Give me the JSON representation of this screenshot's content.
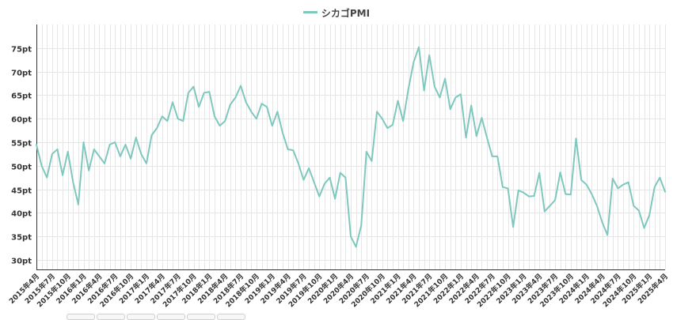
{
  "colors": {
    "line": "#7ec8bf",
    "grid": "#e6e6e6",
    "axis": "#333333",
    "text": "#333333"
  },
  "chart_data": {
    "type": "line",
    "title": "",
    "xlabel": "",
    "ylabel": "",
    "y_unit": "pt",
    "ylim": [
      28,
      80
    ],
    "y_ticks": [
      30,
      35,
      40,
      45,
      50,
      55,
      60,
      65,
      70,
      75
    ],
    "grid": true,
    "legend_position": "top-center",
    "x_tick_labels": [
      "2015年4月",
      "2015年7月",
      "2015年10月",
      "2016年1月",
      "2016年4月",
      "2016年7月",
      "2016年10月",
      "2017年1月",
      "2017年4月",
      "2017年7月",
      "2017年10月",
      "2018年1月",
      "2018年4月",
      "2018年7月",
      "2018年10月",
      "2019年1月",
      "2019年4月",
      "2019年7月",
      "2019年10月",
      "2020年1月",
      "2020年4月",
      "2020年7月",
      "2020年10月",
      "2021年1月",
      "2021年4月",
      "2021年7月",
      "2021年10月",
      "2022年1月",
      "2022年4月",
      "2022年7月",
      "2022年10月",
      "2023年1月",
      "2023年4月",
      "2023年7月",
      "2023年10月",
      "2024年1月",
      "2024年4月",
      "2024年7月",
      "2024年10月",
      "2025年1月",
      "2025年4月"
    ],
    "series": [
      {
        "name": "シカゴPMI",
        "values": [
          54.5,
          50.0,
          47.5,
          52.5,
          53.5,
          48.0,
          53.0,
          46.5,
          41.8,
          55.0,
          49.0,
          53.5,
          52.0,
          50.5,
          54.5,
          55.0,
          52.0,
          54.5,
          51.5,
          56.0,
          52.5,
          50.5,
          56.5,
          58.0,
          60.5,
          59.5,
          63.5,
          60.0,
          59.5,
          65.5,
          66.8,
          62.5,
          65.5,
          65.7,
          60.5,
          58.5,
          59.5,
          63.0,
          64.5,
          67.0,
          63.5,
          61.5,
          60.0,
          63.2,
          62.5,
          58.5,
          61.5,
          57.0,
          53.5,
          53.3,
          50.5,
          47.0,
          49.5,
          46.5,
          43.5,
          46.2,
          47.5,
          43.0,
          48.5,
          47.5,
          35.0,
          32.8,
          37.3,
          53.0,
          51.0,
          61.5,
          60.0,
          58.0,
          58.7,
          63.8,
          59.5,
          66.3,
          72.0,
          75.2,
          66.0,
          73.5,
          66.8,
          64.5,
          68.5,
          62.0,
          64.5,
          65.2,
          56.0,
          62.8,
          56.3,
          60.2,
          56.0,
          52.0,
          52.0,
          45.5,
          45.2,
          37.0,
          44.8,
          44.3,
          43.5,
          43.6,
          48.5,
          40.3,
          41.5,
          42.7,
          48.6,
          44.0,
          43.9,
          55.8,
          47.0,
          46.0,
          44.0,
          41.5,
          38.0,
          35.3,
          47.3,
          45.2,
          46.0,
          46.5,
          41.5,
          40.5,
          36.8,
          39.5,
          45.5,
          47.5,
          44.5
        ]
      }
    ]
  }
}
